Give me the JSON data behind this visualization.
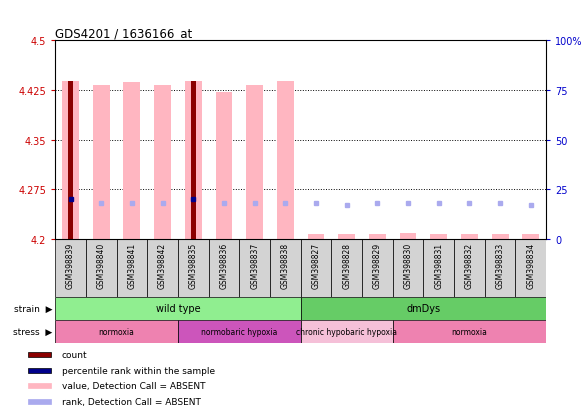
{
  "title": "GDS4201 / 1636166_at",
  "samples": [
    "GSM398839",
    "GSM398840",
    "GSM398841",
    "GSM398842",
    "GSM398835",
    "GSM398836",
    "GSM398837",
    "GSM398838",
    "GSM398827",
    "GSM398828",
    "GSM398829",
    "GSM398830",
    "GSM398831",
    "GSM398832",
    "GSM398833",
    "GSM398834"
  ],
  "pink_bar_tops": [
    4.438,
    4.432,
    4.437,
    4.432,
    4.438,
    4.422,
    4.432,
    4.438,
    4.207,
    4.207,
    4.207,
    4.209,
    4.208,
    4.207,
    4.208,
    4.207
  ],
  "dark_red_bar_tops": [
    4.438,
    null,
    null,
    null,
    4.438,
    null,
    null,
    null,
    null,
    null,
    null,
    null,
    null,
    null,
    null,
    null
  ],
  "blue_rank_pct": [
    20,
    18,
    18,
    18,
    20,
    18,
    18,
    18,
    18,
    17,
    18,
    18,
    18,
    18,
    18,
    17
  ],
  "is_dark_blue": [
    true,
    false,
    false,
    false,
    true,
    false,
    false,
    false,
    false,
    false,
    false,
    false,
    false,
    false,
    false,
    false
  ],
  "ylim": [
    4.2,
    4.5
  ],
  "yticks": [
    4.2,
    4.275,
    4.35,
    4.425,
    4.5
  ],
  "right_yticks": [
    0,
    25,
    50,
    75,
    100
  ],
  "right_ylim": [
    0,
    100
  ],
  "strain_groups": [
    {
      "label": "wild type",
      "start": 0,
      "end": 8,
      "color": "#90EE90"
    },
    {
      "label": "dmDys",
      "start": 8,
      "end": 16,
      "color": "#66CC66"
    }
  ],
  "stress_groups": [
    {
      "label": "normoxia",
      "start": 0,
      "end": 4,
      "color": "#EE82B0"
    },
    {
      "label": "normobaric hypoxia",
      "start": 4,
      "end": 8,
      "color": "#CC55BB"
    },
    {
      "label": "chronic hypobaric hypoxia",
      "start": 8,
      "end": 11,
      "color": "#F5C0D8"
    },
    {
      "label": "normoxia",
      "start": 11,
      "end": 16,
      "color": "#EE82B0"
    }
  ],
  "legend_items": [
    {
      "label": "count",
      "color": "#8B0000"
    },
    {
      "label": "percentile rank within the sample",
      "color": "#00008B"
    },
    {
      "label": "value, Detection Call = ABSENT",
      "color": "#FFB6C1"
    },
    {
      "label": "rank, Detection Call = ABSENT",
      "color": "#AAAAEE"
    }
  ],
  "bg_color": "#FFFFFF",
  "left_tick_color": "#CC0000",
  "right_tick_color": "#0000CC",
  "pink_bar_width": 0.55,
  "dark_red_bar_width": 0.18
}
